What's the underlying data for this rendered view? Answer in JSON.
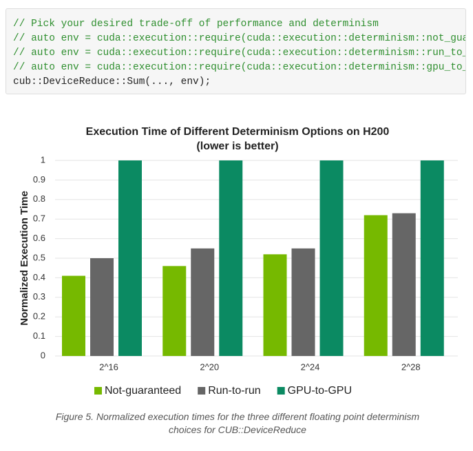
{
  "code": [
    "// Pick your desired trade-off of performance and determinism",
    "// auto env = cuda::execution::require(cuda::execution::determinism::not_gua",
    "// auto env = cuda::execution::require(cuda::execution::determinism::run_to_",
    "// auto env = cuda::execution::require(cuda::execution::determinism::gpu_to_g",
    "cub::DeviceReduce::Sum(..., env);"
  ],
  "chart_data": {
    "type": "bar",
    "title": "Execution Time of Different Determinism Options on H200",
    "subtitle": "(lower is better)",
    "y_label": "Normalized Execution Time",
    "categories": [
      "2^16",
      "2^20",
      "2^24",
      "2^28"
    ],
    "series": [
      {
        "name": "Not-guaranteed",
        "color": "#76b900",
        "values": [
          0.41,
          0.46,
          0.52,
          0.72
        ]
      },
      {
        "name": "Run-to-run",
        "color": "#666666",
        "values": [
          0.5,
          0.55,
          0.55,
          0.73
        ]
      },
      {
        "name": "GPU-to-GPU",
        "color": "#0b8a62",
        "values": [
          1,
          1,
          1,
          1
        ]
      }
    ],
    "ylim": [
      0,
      1
    ],
    "yticks": [
      0,
      0.1,
      0.2,
      0.3,
      0.4,
      0.5,
      0.6,
      0.7,
      0.8,
      0.9,
      1
    ],
    "grid": true
  },
  "caption": "Figure 5.  Normalized execution times for the three different floating point determinism choices for CUB::DeviceReduce"
}
